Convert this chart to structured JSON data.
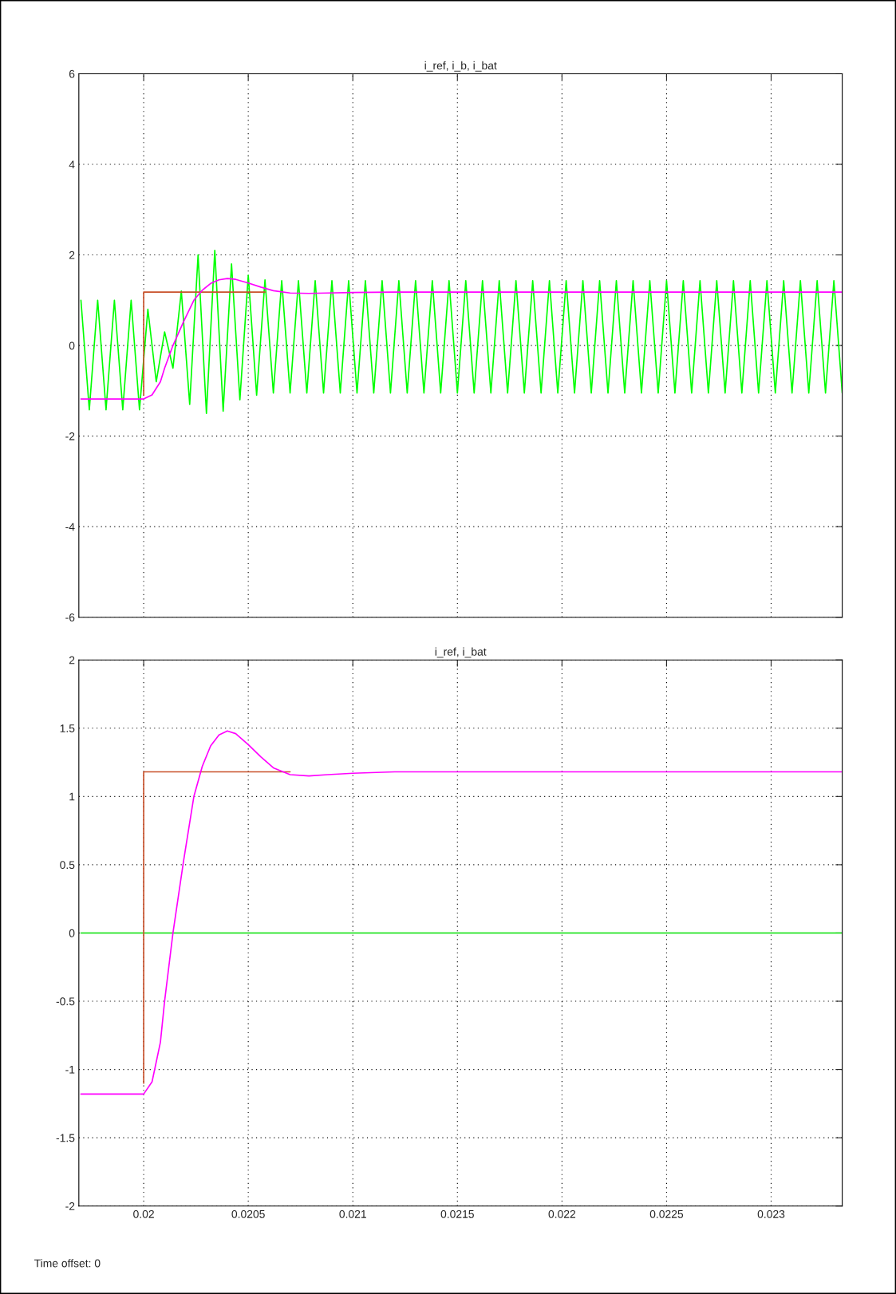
{
  "chart_data": [
    {
      "type": "line",
      "title": "i_ref, i_b, i_bat",
      "xlim": [
        0.01969,
        0.02334
      ],
      "xticks": [
        0.02,
        0.0205,
        0.021,
        0.0215,
        0.022,
        0.0225,
        0.023
      ],
      "ylim": [
        -6,
        6
      ],
      "yticks": [
        -6,
        -4,
        -2,
        0,
        2,
        4,
        6
      ],
      "grid": true,
      "tick_labels": "y",
      "series": [
        {
          "type": "line",
          "color": "#00ff00",
          "x": [
            0.0197,
            0.01974,
            0.01978,
            0.01982,
            0.01986,
            0.0199,
            0.01994,
            0.01998,
            0.02002,
            0.02006,
            0.0201,
            0.02014,
            0.02018,
            0.02022,
            0.02026,
            0.0203,
            0.02034,
            0.02038,
            0.02042,
            0.02046,
            0.0205,
            0.02054,
            0.02058,
            0.02062,
            0.02066,
            0.0207,
            0.02074,
            0.02078,
            0.02082,
            0.02086,
            0.0209,
            0.02094,
            0.02098,
            0.02102,
            0.02106,
            0.0211,
            0.02114,
            0.02118,
            0.02122,
            0.02126,
            0.0213,
            0.02134,
            0.02138,
            0.02142,
            0.02146,
            0.0215,
            0.02154,
            0.02158,
            0.02162,
            0.02166,
            0.0217,
            0.02174,
            0.02178,
            0.02182,
            0.02186,
            0.0219,
            0.02194,
            0.02198,
            0.02202,
            0.02206,
            0.0221,
            0.02214,
            0.02218,
            0.02222,
            0.02226,
            0.0223,
            0.02234,
            0.02238,
            0.02242,
            0.02246,
            0.0225,
            0.02254,
            0.02258,
            0.02262,
            0.02266,
            0.0227,
            0.02274,
            0.02278,
            0.02282,
            0.02286,
            0.0229,
            0.02294,
            0.02298,
            0.02302,
            0.02306,
            0.0231,
            0.02314,
            0.02318,
            0.02322,
            0.02326,
            0.0233,
            0.02334
          ],
          "values": [
            1.0,
            -1.42,
            1.0,
            -1.42,
            1.0,
            -1.42,
            1.0,
            -1.42,
            0.8,
            -0.8,
            0.3,
            -0.5,
            1.2,
            -1.3,
            2.0,
            -1.5,
            2.1,
            -1.45,
            1.8,
            -1.2,
            1.55,
            -1.1,
            1.45,
            -1.05,
            1.43,
            -1.05,
            1.43,
            -1.05,
            1.43,
            -1.05,
            1.43,
            -1.05,
            1.43,
            -1.05,
            1.43,
            -1.05,
            1.43,
            -1.05,
            1.43,
            -1.05,
            1.43,
            -1.05,
            1.43,
            -1.05,
            1.43,
            -1.05,
            1.43,
            -1.05,
            1.43,
            -1.05,
            1.43,
            -1.05,
            1.43,
            -1.05,
            1.43,
            -1.05,
            1.43,
            -1.05,
            1.43,
            -1.05,
            1.43,
            -1.05,
            1.43,
            -1.05,
            1.43,
            -1.05,
            1.43,
            -1.05,
            1.43,
            -1.05,
            1.43,
            -1.05,
            1.43,
            -1.05,
            1.43,
            -1.05,
            1.43,
            -1.05,
            1.43,
            -1.05,
            1.43,
            -1.05,
            1.43,
            -1.05,
            1.43,
            -1.05,
            1.43,
            -1.05,
            1.43,
            -1.05,
            1.43,
            -1.05
          ]
        },
        {
          "type": "step",
          "color": "#c8502a",
          "x": [
            0.02,
            0.02,
            0.02058
          ],
          "values": [
            -1.1,
            1.18,
            1.18
          ]
        },
        {
          "type": "line",
          "color": "#ff00ff",
          "x": [
            0.0197,
            0.02,
            0.02004,
            0.02008,
            0.0201,
            0.02014,
            0.02019,
            0.02024,
            0.02028,
            0.02032,
            0.02036,
            0.0204,
            0.02044,
            0.0205,
            0.02056,
            0.02062,
            0.0207,
            0.02079,
            0.02088,
            0.021,
            0.0212,
            0.0214,
            0.02334
          ],
          "values": [
            -1.18,
            -1.18,
            -1.09,
            -0.8,
            -0.5,
            0,
            0.52,
            1.0,
            1.22,
            1.37,
            1.45,
            1.48,
            1.46,
            1.38,
            1.29,
            1.21,
            1.16,
            1.15,
            1.16,
            1.17,
            1.18,
            1.18,
            1.18
          ]
        }
      ]
    },
    {
      "type": "line",
      "title": "i_ref, i_bat",
      "xlim": [
        0.01969,
        0.02334
      ],
      "xticks": [
        0.02,
        0.0205,
        0.021,
        0.0215,
        0.022,
        0.0225,
        0.023
      ],
      "ylim": [
        -2,
        2
      ],
      "yticks": [
        -2,
        -1.5,
        -1,
        -0.5,
        0,
        0.5,
        1,
        1.5,
        2
      ],
      "grid": true,
      "annotations": [
        "Time offset: 0"
      ],
      "series": [
        {
          "type": "line",
          "color": "#00e000",
          "x": [
            0.0197,
            0.02334
          ],
          "values": [
            0,
            0
          ]
        },
        {
          "type": "step",
          "color": "#c8502a",
          "x": [
            0.02,
            0.02,
            0.0207
          ],
          "values": [
            -1.1,
            1.18,
            1.18
          ]
        },
        {
          "type": "line",
          "color": "#ff00ff",
          "x": [
            0.0197,
            0.02,
            0.02004,
            0.02008,
            0.0201,
            0.02014,
            0.02019,
            0.02024,
            0.02028,
            0.02032,
            0.02036,
            0.0204,
            0.02044,
            0.0205,
            0.02056,
            0.02062,
            0.0207,
            0.02079,
            0.02088,
            0.021,
            0.0212,
            0.0214,
            0.02334
          ],
          "values": [
            -1.18,
            -1.18,
            -1.09,
            -0.8,
            -0.5,
            0,
            0.52,
            1.0,
            1.22,
            1.37,
            1.45,
            1.48,
            1.46,
            1.38,
            1.29,
            1.21,
            1.16,
            1.15,
            1.16,
            1.17,
            1.18,
            1.18,
            1.18
          ]
        }
      ]
    }
  ]
}
